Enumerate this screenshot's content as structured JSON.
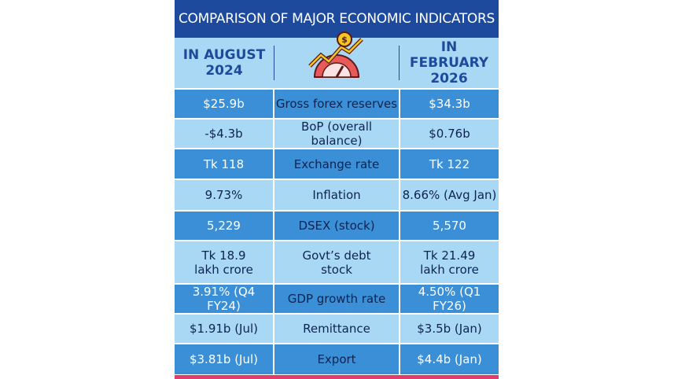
{
  "header": {
    "title": "COMPARISON OF MAJOR ECONOMIC INDICATORS"
  },
  "columns": [
    "IN AUGUST\n2024",
    "IN FEBRUARY\n2026"
  ],
  "table": {
    "rows": [
      [
        "$25.9b",
        "Gross forex reserves",
        "$34.3b"
      ],
      [
        "-$4.3b",
        "BoP (overall balance)",
        "$0.76b"
      ],
      [
        "Tk 118",
        "Exchange rate",
        "Tk 122"
      ],
      [
        "9.73%",
        "Inflation",
        "8.66% (Avg Jan)"
      ],
      [
        "5,229",
        "DSEX (stock)",
        "5,570"
      ],
      [
        "Tk 18.9\nlakh crore",
        "Govt’s debt\nstock",
        "Tk 21.49\nlakh crore"
      ],
      [
        "3.91% (Q4 FY24)",
        "GDP growth rate",
        "4.50% (Q1 FY26)"
      ],
      [
        "$1.91b (Jul)",
        "Remittance",
        "$3.5b (Jan)"
      ],
      [
        "$3.81b (Jul)",
        "Export",
        "$4.4b (Jan)"
      ]
    ]
  }
}
